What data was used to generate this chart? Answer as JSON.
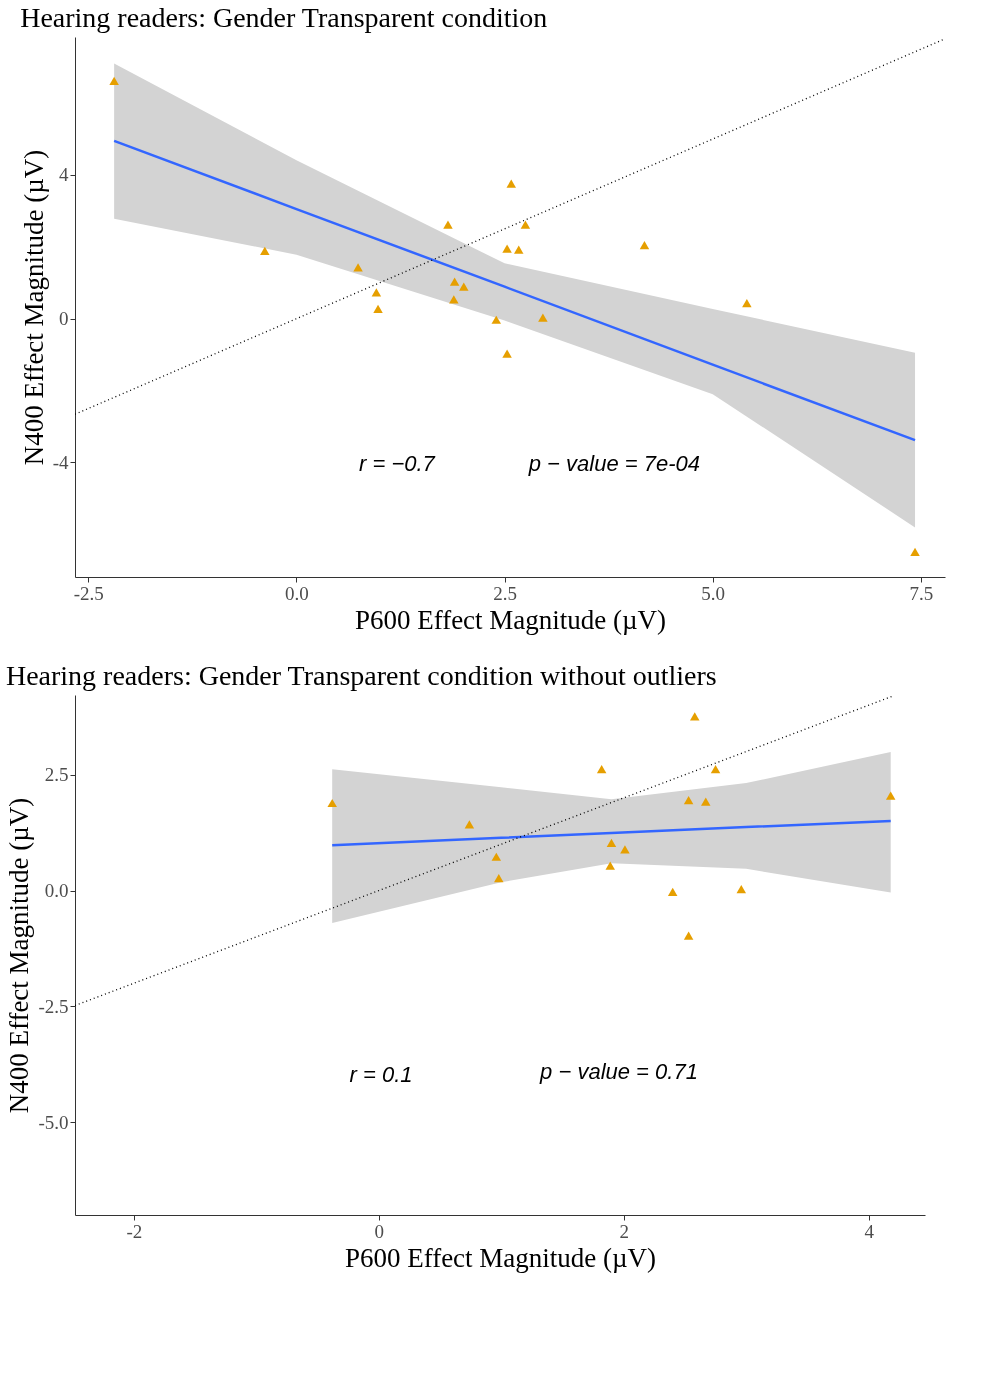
{
  "chart_data": [
    {
      "type": "scatter",
      "title": "Hearing readers: Gender Transparent condition",
      "xlabel": "P600 Effect Magnitude (µV)",
      "ylabel": "N400 Effect Magnitude (µV)",
      "xlim": [
        -2.66,
        7.79
      ],
      "ylim": [
        -7.19,
        7.84
      ],
      "xticks": [
        {
          "value": -2.5,
          "label": "-2.5"
        },
        {
          "value": 0,
          "label": "0.0"
        },
        {
          "value": 2.5,
          "label": "2.5"
        },
        {
          "value": 5,
          "label": "5.0"
        },
        {
          "value": 7.5,
          "label": "7.5"
        }
      ],
      "yticks": [
        -4,
        0,
        4
      ],
      "grid": false,
      "legend": false,
      "annotations": [
        "r = −0.7",
        "p − value = 7e-04"
      ],
      "series": [
        {
          "type": "line",
          "color": "#3366ff",
          "line_style": "solid",
          "x": [
            -2.19,
            0,
            2.5,
            5,
            7.43
          ],
          "values": [
            4.95,
            3.05,
            0.89,
            -1.28,
            -3.38
          ],
          "lower": [
            2.78,
            1.78,
            -0.05,
            -2.1,
            -5.81
          ],
          "upper": [
            7.1,
            4.41,
            1.54,
            0.27,
            -0.95
          ]
        },
        {
          "type": "line",
          "color": "#000000",
          "line_style": "dotted",
          "x": [
            -2.66,
            7.79
          ],
          "values": [
            -2.66,
            7.79
          ]
        },
        {
          "color": "#e69f00",
          "marker": "triangle",
          "x": [
            -2.19,
            -0.38,
            0.74,
            0.96,
            0.98,
            1.82,
            1.9,
            1.89,
            2.01,
            2.4,
            2.53,
            2.58,
            2.53,
            2.67,
            2.75,
            2.96,
            4.18,
            5.41,
            7.43
          ],
          "values": [
            6.62,
            1.89,
            1.43,
            0.73,
            0.27,
            2.62,
            1.03,
            0.54,
            0.89,
            -0.03,
            -0.97,
            3.76,
            1.95,
            1.92,
            2.62,
            0.03,
            2.05,
            0.43,
            -6.49
          ]
        }
      ]
    },
    {
      "type": "scatter",
      "title": "Hearing readers: Gender Transparent condition without outliers",
      "xlabel": "P600 Effect Magnitude (µV)",
      "ylabel": "N400 Effect Magnitude (µV)",
      "xlim": [
        -2.48,
        4.46
      ],
      "ylim": [
        -7.0,
        4.22
      ],
      "xticks": [
        -2,
        0,
        2,
        4
      ],
      "yticks": [
        {
          "value": -5,
          "label": "-5.0"
        },
        {
          "value": -2.5,
          "label": "-2.5"
        },
        {
          "value": 0,
          "label": "0.0"
        },
        {
          "value": 2.5,
          "label": "2.5"
        }
      ],
      "grid": false,
      "legend": false,
      "annotations": [
        "r = 0.1",
        "p − value = 0.71"
      ],
      "series": [
        {
          "type": "line",
          "color": "#3366ff",
          "line_style": "solid",
          "x": [
            -0.38,
            1,
            1.9,
            3,
            4.18
          ],
          "values": [
            0.98,
            1.14,
            1.24,
            1.37,
            1.5
          ],
          "lower": [
            -0.7,
            0.18,
            0.59,
            0.47,
            -0.04
          ],
          "upper": [
            2.62,
            2.23,
            1.97,
            2.32,
            2.99
          ]
        },
        {
          "type": "line",
          "color": "#000000",
          "line_style": "dotted",
          "x": [
            -2.48,
            4.2
          ],
          "values": [
            -2.48,
            4.2
          ]
        },
        {
          "color": "#e69f00",
          "marker": "triangle",
          "x": [
            -0.38,
            0.74,
            0.96,
            0.98,
            1.82,
            1.9,
            1.89,
            2.01,
            2.4,
            2.53,
            2.58,
            2.53,
            2.67,
            2.75,
            2.96,
            4.18
          ],
          "values": [
            1.89,
            1.43,
            0.73,
            0.27,
            2.62,
            1.03,
            0.54,
            0.89,
            -0.03,
            -0.97,
            3.76,
            1.95,
            1.92,
            2.62,
            0.03,
            2.05
          ]
        }
      ]
    }
  ]
}
